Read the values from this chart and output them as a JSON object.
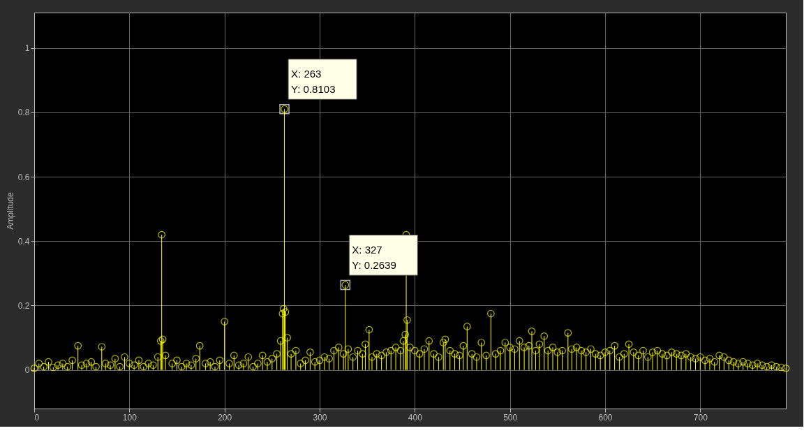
{
  "chart_data": {
    "type": "lollipop",
    "ylabel": "Amplitude",
    "xlim": [
      0,
      790
    ],
    "ylim": [
      -0.12,
      1.11
    ],
    "xticks": [
      0,
      100,
      200,
      300,
      400,
      500,
      600,
      700
    ],
    "yticks": [
      0,
      0.2,
      0.4,
      0.6,
      0.8,
      1
    ],
    "grid": true,
    "marker": "circle",
    "series": [
      {
        "color": "#ffff00",
        "x": [
          0,
          5,
          10,
          15,
          20,
          25,
          30,
          35,
          40,
          46,
          50,
          55,
          60,
          65,
          71,
          75,
          80,
          85,
          90,
          95,
          100,
          105,
          110,
          115,
          120,
          125,
          130,
          133,
          134,
          135,
          138,
          145,
          150,
          155,
          160,
          165,
          170,
          174,
          180,
          185,
          190,
          195,
          200,
          205,
          210,
          215,
          220,
          225,
          230,
          235,
          240,
          245,
          250,
          255,
          259,
          261,
          262,
          263,
          264,
          266,
          270,
          275,
          280,
          285,
          290,
          295,
          300,
          305,
          310,
          315,
          320,
          325,
          327,
          330,
          335,
          340,
          345,
          348,
          352,
          355,
          360,
          365,
          370,
          375,
          380,
          385,
          388,
          390,
          391,
          392,
          395,
          400,
          405,
          410,
          415,
          420,
          425,
          430,
          432,
          437,
          442,
          447,
          451,
          455,
          460,
          465,
          470,
          475,
          480,
          485,
          490,
          495,
          500,
          505,
          510,
          515,
          520,
          523,
          527,
          531,
          536,
          540,
          545,
          550,
          555,
          561,
          565,
          570,
          575,
          580,
          585,
          590,
          595,
          600,
          605,
          610,
          615,
          620,
          625,
          630,
          635,
          640,
          645,
          650,
          655,
          660,
          665,
          670,
          675,
          680,
          685,
          690,
          695,
          700,
          705,
          710,
          715,
          720,
          725,
          730,
          735,
          740,
          745,
          750,
          755,
          760,
          765,
          770,
          775,
          780,
          785,
          790
        ],
        "values": [
          0.005,
          0.02,
          0.01,
          0.025,
          0.008,
          0.015,
          0.02,
          0.01,
          0.03,
          0.075,
          0.015,
          0.02,
          0.025,
          0.01,
          0.072,
          0.02,
          0.015,
          0.035,
          0.01,
          0.04,
          0.02,
          0.015,
          0.03,
          0.01,
          0.02,
          0.015,
          0.04,
          0.09,
          0.42,
          0.095,
          0.045,
          0.02,
          0.03,
          0.01,
          0.02,
          0.015,
          0.035,
          0.075,
          0.02,
          0.025,
          0.01,
          0.03,
          0.15,
          0.02,
          0.045,
          0.015,
          0.02,
          0.04,
          0.01,
          0.02,
          0.045,
          0.025,
          0.035,
          0.05,
          0.09,
          0.175,
          0.19,
          0.8103,
          0.18,
          0.1,
          0.05,
          0.06,
          0.02,
          0.03,
          0.055,
          0.025,
          0.03,
          0.04,
          0.035,
          0.06,
          0.07,
          0.05,
          0.2639,
          0.065,
          0.04,
          0.06,
          0.05,
          0.08,
          0.125,
          0.04,
          0.05,
          0.045,
          0.055,
          0.06,
          0.07,
          0.06,
          0.09,
          0.11,
          0.42,
          0.155,
          0.07,
          0.06,
          0.05,
          0.065,
          0.09,
          0.05,
          0.04,
          0.085,
          0.095,
          0.06,
          0.05,
          0.045,
          0.075,
          0.135,
          0.05,
          0.04,
          0.085,
          0.045,
          0.175,
          0.05,
          0.06,
          0.085,
          0.07,
          0.065,
          0.09,
          0.07,
          0.075,
          0.12,
          0.06,
          0.08,
          0.105,
          0.06,
          0.07,
          0.055,
          0.06,
          0.115,
          0.065,
          0.07,
          0.06,
          0.055,
          0.065,
          0.05,
          0.045,
          0.055,
          0.06,
          0.075,
          0.04,
          0.05,
          0.08,
          0.055,
          0.045,
          0.06,
          0.04,
          0.055,
          0.06,
          0.05,
          0.045,
          0.055,
          0.05,
          0.045,
          0.05,
          0.04,
          0.035,
          0.04,
          0.03,
          0.035,
          0.025,
          0.045,
          0.04,
          0.03,
          0.025,
          0.02,
          0.025,
          0.02,
          0.015,
          0.02,
          0.015,
          0.01,
          0.015,
          0.01,
          0.008,
          0.005
        ]
      }
    ],
    "annotations": [
      {
        "text": "X: 263\nY: 0.8103",
        "x": 263,
        "y": 0.8103
      },
      {
        "text": "X: 327\nY: 0.2639",
        "x": 327,
        "y": 0.2639
      }
    ]
  }
}
